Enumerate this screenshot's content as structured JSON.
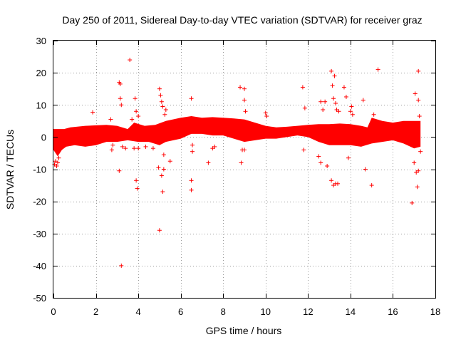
{
  "chart_data": {
    "type": "scatter",
    "title": "Day 250 of 2011, Sidereal Day-to-day VTEC variation (SDTVAR) for receiver graz",
    "xlabel": "GPS time / hours",
    "ylabel": "SDTVAR / TECUs",
    "xlim": [
      0,
      18
    ],
    "ylim": [
      -50,
      30
    ],
    "x_ticks": [
      0,
      2,
      4,
      6,
      8,
      10,
      12,
      14,
      16,
      18
    ],
    "y_ticks": [
      -50,
      -40,
      -30,
      -20,
      -10,
      0,
      10,
      20,
      30
    ],
    "x_tick_labels": [
      "0",
      "2",
      "4",
      "6",
      "8",
      "10",
      "12",
      "14",
      "16",
      "18"
    ],
    "y_tick_labels": [
      "-50",
      "-40",
      "-30",
      "-20",
      "-10",
      "0",
      "10",
      "20",
      "30"
    ],
    "grid": true,
    "marker": "+",
    "color": "#ff0000",
    "series": [
      {
        "name": "SDTVAR",
        "band_upper": [
          [
            0.0,
            2.5
          ],
          [
            0.5,
            2.5
          ],
          [
            0.8,
            3.0
          ],
          [
            1.5,
            3.5
          ],
          [
            2.5,
            3.8
          ],
          [
            3.0,
            3.5
          ],
          [
            3.5,
            2.5
          ],
          [
            3.8,
            4.5
          ],
          [
            4.3,
            3.5
          ],
          [
            4.8,
            3.8
          ],
          [
            5.3,
            5.0
          ],
          [
            6.0,
            6.0
          ],
          [
            6.5,
            6.5
          ],
          [
            7.0,
            6.0
          ],
          [
            7.5,
            6.2
          ],
          [
            8.0,
            6.0
          ],
          [
            8.5,
            5.8
          ],
          [
            9.0,
            5.5
          ],
          [
            9.5,
            4.5
          ],
          [
            10.0,
            3.5
          ],
          [
            10.5,
            3.0
          ],
          [
            11.0,
            3.2
          ],
          [
            11.5,
            3.5
          ],
          [
            12.0,
            3.8
          ],
          [
            12.5,
            4.0
          ],
          [
            13.0,
            4.0
          ],
          [
            13.5,
            4.2
          ],
          [
            14.0,
            4.0
          ],
          [
            14.5,
            3.5
          ],
          [
            14.8,
            3.0
          ],
          [
            15.0,
            6.0
          ],
          [
            15.5,
            5.0
          ],
          [
            16.0,
            4.5
          ],
          [
            16.5,
            5.0
          ],
          [
            17.0,
            5.0
          ],
          [
            17.3,
            5.0
          ]
        ],
        "band_lower": [
          [
            0.0,
            -4.0
          ],
          [
            0.2,
            -6.0
          ],
          [
            0.4,
            -4.0
          ],
          [
            0.6,
            -3.0
          ],
          [
            1.0,
            -2.5
          ],
          [
            1.5,
            -3.0
          ],
          [
            2.0,
            -2.5
          ],
          [
            2.5,
            -1.5
          ],
          [
            3.0,
            -1.5
          ],
          [
            3.5,
            -1.0
          ],
          [
            4.0,
            -1.5
          ],
          [
            4.5,
            -1.5
          ],
          [
            5.0,
            -2.5
          ],
          [
            5.3,
            -1.5
          ],
          [
            6.0,
            -0.5
          ],
          [
            6.5,
            1.0
          ],
          [
            7.0,
            1.0
          ],
          [
            7.5,
            0.5
          ],
          [
            8.0,
            0.5
          ],
          [
            8.5,
            -0.5
          ],
          [
            9.0,
            -1.5
          ],
          [
            9.5,
            -1.0
          ],
          [
            10.0,
            -0.5
          ],
          [
            10.5,
            -0.5
          ],
          [
            11.0,
            0.0
          ],
          [
            11.5,
            0.5
          ],
          [
            12.0,
            0.0
          ],
          [
            12.5,
            -1.5
          ],
          [
            13.0,
            -2.5
          ],
          [
            13.5,
            -2.5
          ],
          [
            14.0,
            -2.5
          ],
          [
            14.5,
            -3.0
          ],
          [
            15.0,
            -2.0
          ],
          [
            15.5,
            -1.5
          ],
          [
            16.0,
            -1.0
          ],
          [
            16.5,
            -2.0
          ],
          [
            17.0,
            -3.5
          ],
          [
            17.3,
            -3.0
          ]
        ],
        "outliers": [
          [
            0.05,
            -8.5
          ],
          [
            0.1,
            -7.5
          ],
          [
            0.15,
            -9.0
          ],
          [
            0.2,
            -8.0
          ],
          [
            0.25,
            -6.5
          ],
          [
            1.85,
            7.7
          ],
          [
            2.7,
            5.5
          ],
          [
            2.75,
            -4.0
          ],
          [
            2.8,
            -2.5
          ],
          [
            3.1,
            -10.5
          ],
          [
            3.1,
            17.0
          ],
          [
            3.15,
            16.5
          ],
          [
            3.15,
            12.0
          ],
          [
            3.2,
            10.0
          ],
          [
            3.2,
            -40.0
          ],
          [
            3.25,
            -3.0
          ],
          [
            3.4,
            -3.5
          ],
          [
            3.6,
            24.0
          ],
          [
            3.7,
            5.5
          ],
          [
            3.8,
            -3.5
          ],
          [
            3.85,
            12.0
          ],
          [
            3.9,
            8.0
          ],
          [
            3.9,
            -13.5
          ],
          [
            3.95,
            -16.0
          ],
          [
            4.0,
            6.5
          ],
          [
            4.0,
            -3.5
          ],
          [
            4.35,
            -3.0
          ],
          [
            4.7,
            -3.5
          ],
          [
            4.95,
            -9.5
          ],
          [
            5.0,
            -29.0
          ],
          [
            5.0,
            15.0
          ],
          [
            5.05,
            13.0
          ],
          [
            5.1,
            11.0
          ],
          [
            5.1,
            -12.0
          ],
          [
            5.15,
            -17.0
          ],
          [
            5.15,
            9.5
          ],
          [
            5.2,
            -10.0
          ],
          [
            5.2,
            -5.5
          ],
          [
            5.25,
            7.0
          ],
          [
            5.3,
            8.5
          ],
          [
            5.5,
            -7.5
          ],
          [
            6.5,
            12.0
          ],
          [
            6.5,
            -13.5
          ],
          [
            6.5,
            -16.5
          ],
          [
            6.55,
            -4.5
          ],
          [
            6.55,
            -2.5
          ],
          [
            7.3,
            -8.0
          ],
          [
            7.5,
            -3.5
          ],
          [
            7.6,
            -3.0
          ],
          [
            8.8,
            15.5
          ],
          [
            8.85,
            -8.0
          ],
          [
            8.9,
            -4.0
          ],
          [
            9.0,
            15.0
          ],
          [
            9.0,
            -4.0
          ],
          [
            9.0,
            11.5
          ],
          [
            9.05,
            8.0
          ],
          [
            10.0,
            7.5
          ],
          [
            10.05,
            6.5
          ],
          [
            11.75,
            15.5
          ],
          [
            11.8,
            -4.0
          ],
          [
            11.85,
            9.0
          ],
          [
            12.5,
            -6.0
          ],
          [
            12.6,
            11.0
          ],
          [
            12.6,
            -8.0
          ],
          [
            12.7,
            8.5
          ],
          [
            12.8,
            11.0
          ],
          [
            12.9,
            -9.0
          ],
          [
            13.1,
            20.5
          ],
          [
            13.1,
            -13.5
          ],
          [
            13.15,
            16.0
          ],
          [
            13.2,
            12.0
          ],
          [
            13.2,
            -15.0
          ],
          [
            13.25,
            19.0
          ],
          [
            13.3,
            10.5
          ],
          [
            13.3,
            -14.5
          ],
          [
            13.35,
            8.5
          ],
          [
            13.4,
            -14.5
          ],
          [
            13.45,
            8.0
          ],
          [
            13.7,
            15.5
          ],
          [
            13.8,
            12.5
          ],
          [
            13.9,
            -6.5
          ],
          [
            14.0,
            8.0
          ],
          [
            14.05,
            9.5
          ],
          [
            14.1,
            7.0
          ],
          [
            14.6,
            11.5
          ],
          [
            14.7,
            -10.0
          ],
          [
            15.0,
            -15.0
          ],
          [
            15.1,
            7.0
          ],
          [
            15.3,
            21.0
          ],
          [
            16.9,
            -20.5
          ],
          [
            17.0,
            -8.0
          ],
          [
            17.05,
            13.5
          ],
          [
            17.1,
            -11.0
          ],
          [
            17.15,
            -15.5
          ],
          [
            17.2,
            20.5
          ],
          [
            17.2,
            11.5
          ],
          [
            17.2,
            -10.5
          ],
          [
            17.25,
            6.5
          ],
          [
            17.3,
            -4.5
          ]
        ]
      }
    ]
  }
}
